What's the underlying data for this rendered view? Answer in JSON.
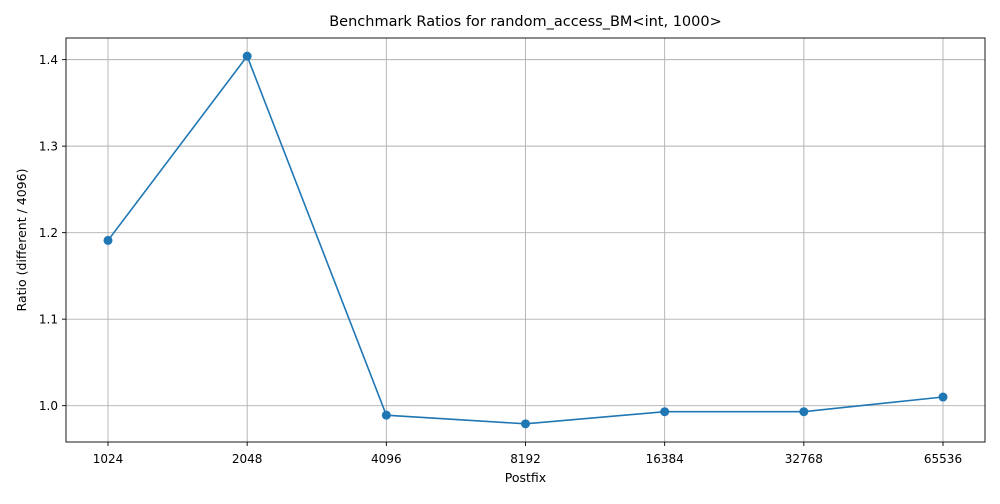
{
  "chart_data": {
    "type": "line",
    "title": "Benchmark Ratios for random_access_BM<int, 1000>",
    "xlabel": "Postfix",
    "ylabel": "Ratio (different / 4096)",
    "categories": [
      "1024",
      "2048",
      "4096",
      "8192",
      "16384",
      "32768",
      "65536"
    ],
    "series": [
      {
        "values": [
          1.191,
          1.404,
          0.989,
          0.979,
          0.993,
          0.993,
          1.01
        ],
        "color": "#1f77b4",
        "marker": "circle"
      }
    ],
    "ylim": [
      0.958,
      1.425
    ],
    "yticks": [
      1.0,
      1.1,
      1.2,
      1.3,
      1.4
    ],
    "ytick_labels": [
      "1.0",
      "1.1",
      "1.2",
      "1.3",
      "1.4"
    ],
    "grid": true,
    "legend": false
  }
}
